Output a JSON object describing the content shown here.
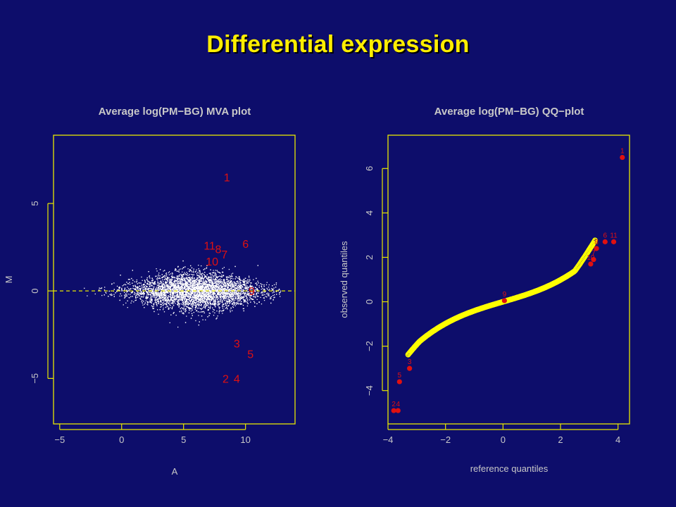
{
  "slide_title": "Differential expression",
  "colors": {
    "background": "#0d0d6b",
    "title": "#ffee00",
    "frame": "#e8e800",
    "text": "#c8c8c8",
    "highlight": "#e01010",
    "cloud": "#ffffff",
    "qq_points": "#ffff00"
  },
  "chart_data": [
    {
      "type": "scatter",
      "title": "Average log(PM−BG) MVA plot",
      "xlabel": "A",
      "ylabel": "M",
      "xlim": [
        -5.5,
        14
      ],
      "ylim": [
        -7.6,
        8.9
      ],
      "xticks": [
        -5,
        0,
        5,
        10
      ],
      "yticks": [
        -5,
        0,
        5
      ],
      "xtick_labels": [
        "−5",
        "0",
        "5",
        "10"
      ],
      "ytick_labels": [
        "−5",
        "0",
        "5"
      ],
      "reference_line": {
        "y": 0,
        "style": "dashed",
        "color": "#e8e800"
      },
      "cloud": {
        "description_kind": "dense white points",
        "n": 6000,
        "x_range": [
          -4.5,
          13
        ],
        "center_x": 6,
        "max_abs_m": 2.3
      },
      "labeled_points": [
        {
          "label": "1",
          "x": 8.5,
          "y": 6.5
        },
        {
          "label": "11",
          "x": 7.1,
          "y": 2.6
        },
        {
          "label": "6",
          "x": 10.0,
          "y": 2.7
        },
        {
          "label": "8",
          "x": 7.8,
          "y": 2.4
        },
        {
          "label": "7",
          "x": 8.3,
          "y": 2.1
        },
        {
          "label": "10",
          "x": 7.3,
          "y": 1.7
        },
        {
          "label": "9",
          "x": 10.5,
          "y": 0.0
        },
        {
          "label": "3",
          "x": 9.3,
          "y": -3.0
        },
        {
          "label": "5",
          "x": 10.4,
          "y": -3.6
        },
        {
          "label": "2",
          "x": 8.4,
          "y": -5.0
        },
        {
          "label": "4",
          "x": 9.3,
          "y": -5.0
        }
      ]
    },
    {
      "type": "scatter",
      "title": "Average log(PM−BG) QQ−plot",
      "xlabel": "reference quantiles",
      "ylabel": "observed quantiles",
      "xlim": [
        -4.0,
        4.4
      ],
      "ylim": [
        -5.5,
        7.5
      ],
      "xticks": [
        -4,
        -2,
        0,
        2,
        4
      ],
      "yticks": [
        -4,
        -2,
        0,
        2,
        4,
        6
      ],
      "xtick_labels": [
        "−4",
        "−2",
        "0",
        "2",
        "4"
      ],
      "ytick_labels": [
        "−4",
        "−2",
        "0",
        "2",
        "4",
        "6"
      ],
      "qq_curve": {
        "x_range": [
          -3.3,
          3.2
        ],
        "n": 220
      },
      "labeled_points": [
        {
          "label": "1",
          "x": 4.15,
          "y": 6.5
        },
        {
          "label": "6",
          "x": 3.55,
          "y": 2.7
        },
        {
          "label": "11",
          "x": 3.85,
          "y": 2.7
        },
        {
          "label": "8",
          "x": 3.25,
          "y": 2.4
        },
        {
          "label": "10",
          "x": 3.05,
          "y": 1.7
        },
        {
          "label": "7",
          "x": 3.15,
          "y": 1.9
        },
        {
          "label": "9",
          "x": 0.05,
          "y": 0.05
        },
        {
          "label": "3",
          "x": -3.25,
          "y": -3.0
        },
        {
          "label": "5",
          "x": -3.6,
          "y": -3.6
        },
        {
          "label": "2",
          "x": -3.8,
          "y": -4.9
        },
        {
          "label": "4",
          "x": -3.65,
          "y": -4.9
        }
      ]
    }
  ]
}
